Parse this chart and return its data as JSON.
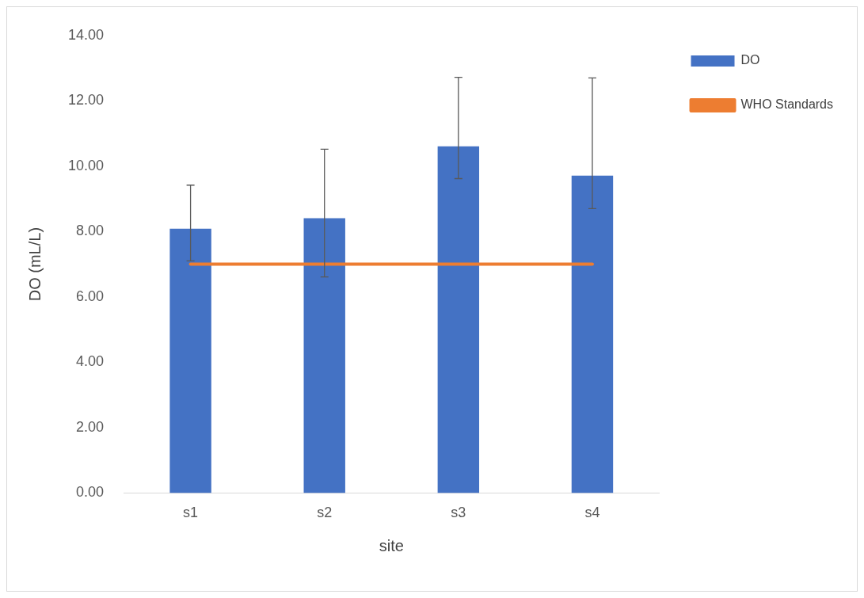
{
  "chart_data": {
    "type": "bar",
    "xlabel": "site",
    "ylabel": "DO (mL/L)",
    "categories": [
      "s1",
      "s2",
      "s3",
      "s4"
    ],
    "series": [
      {
        "name": "DO",
        "color": "#4472c4",
        "values": [
          8.09,
          8.41,
          10.61,
          9.71
        ],
        "errors": [
          [
            7.1,
            9.42
          ],
          [
            6.61,
            10.52
          ],
          [
            9.62,
            12.72
          ],
          [
            8.7,
            12.7
          ]
        ]
      },
      {
        "name": "WHO Standards",
        "type": "line",
        "color": "#ed7d31",
        "values": [
          7,
          7,
          7,
          7
        ]
      }
    ],
    "ylim": [
      0,
      14
    ],
    "yticks": [
      {
        "value": 0,
        "label": "0.00"
      },
      {
        "value": 2,
        "label": "2.00"
      },
      {
        "value": 4,
        "label": "4.00"
      },
      {
        "value": 6,
        "label": "6.00"
      },
      {
        "value": 8,
        "label": "8.00"
      },
      {
        "value": 10,
        "label": "10.00"
      },
      {
        "value": 12,
        "label": "12.00"
      },
      {
        "value": 14,
        "label": "14.00"
      }
    ],
    "grid": false,
    "legend": "top right"
  }
}
